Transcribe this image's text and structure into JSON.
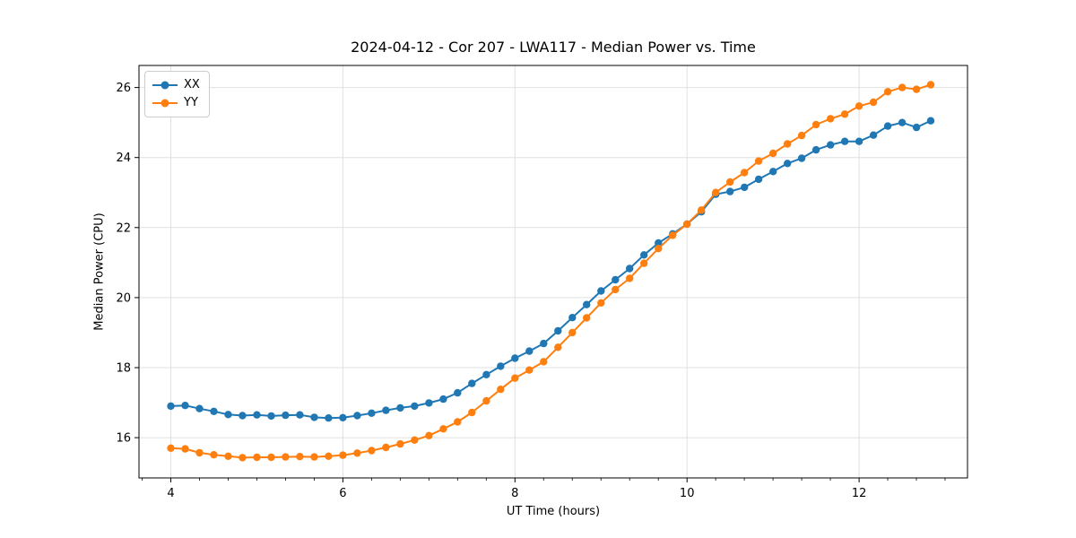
{
  "chart_data": {
    "type": "line",
    "title": "2024-04-12 - Cor 207 - LWA117 - Median Power vs. Time",
    "xlabel": "UT Time (hours)",
    "ylabel": "Median Power (CPU)",
    "xlim": [
      3.63,
      13.26
    ],
    "ylim": [
      14.85,
      26.63
    ],
    "xticks": [
      4,
      6,
      8,
      10,
      12
    ],
    "yticks": [
      16,
      18,
      20,
      22,
      24,
      26
    ],
    "x_minor_tick_step": 0.3333,
    "grid": true,
    "legend_position": "upper-left",
    "x": [
      4.0,
      4.167,
      4.333,
      4.5,
      4.667,
      4.833,
      5.0,
      5.167,
      5.333,
      5.5,
      5.667,
      5.833,
      6.0,
      6.167,
      6.333,
      6.5,
      6.667,
      6.833,
      7.0,
      7.167,
      7.333,
      7.5,
      7.667,
      7.833,
      8.0,
      8.167,
      8.333,
      8.5,
      8.667,
      8.833,
      9.0,
      9.167,
      9.333,
      9.5,
      9.667,
      9.833,
      10.0,
      10.167,
      10.333,
      10.5,
      10.667,
      10.833,
      11.0,
      11.167,
      11.333,
      11.5,
      11.667,
      11.833,
      12.0,
      12.167,
      12.333,
      12.5,
      12.667,
      12.833
    ],
    "series": [
      {
        "name": "XX",
        "color": "#1f77b4",
        "values": [
          16.9,
          16.92,
          16.83,
          16.75,
          16.66,
          16.63,
          16.65,
          16.62,
          16.64,
          16.65,
          16.58,
          16.56,
          16.57,
          16.63,
          16.7,
          16.78,
          16.85,
          16.9,
          16.99,
          17.1,
          17.28,
          17.55,
          17.8,
          18.04,
          18.27,
          18.47,
          18.69,
          19.05,
          19.43,
          19.8,
          20.19,
          20.51,
          20.83,
          21.22,
          21.56,
          21.82,
          22.1,
          22.45,
          22.95,
          23.03,
          23.15,
          23.38,
          23.6,
          23.83,
          23.98,
          24.22,
          24.36,
          24.46,
          24.46,
          24.64,
          24.9,
          25.0,
          24.86,
          25.05
        ]
      },
      {
        "name": "YY",
        "color": "#ff7f0e",
        "values": [
          15.7,
          15.68,
          15.57,
          15.51,
          15.47,
          15.43,
          15.44,
          15.44,
          15.45,
          15.46,
          15.45,
          15.47,
          15.5,
          15.56,
          15.63,
          15.72,
          15.82,
          15.93,
          16.06,
          16.25,
          16.45,
          16.72,
          17.05,
          17.38,
          17.7,
          17.93,
          18.17,
          18.58,
          19.0,
          19.42,
          19.85,
          20.23,
          20.55,
          20.98,
          21.4,
          21.78,
          22.1,
          22.5,
          23.0,
          23.3,
          23.57,
          23.9,
          24.12,
          24.39,
          24.63,
          24.94,
          25.11,
          25.24,
          25.47,
          25.58,
          25.88,
          26.0,
          25.95,
          26.08
        ]
      }
    ]
  },
  "colors": {
    "background": "#ffffff",
    "axis": "#000000",
    "grid": "#e0e0e0",
    "text": "#000000"
  }
}
